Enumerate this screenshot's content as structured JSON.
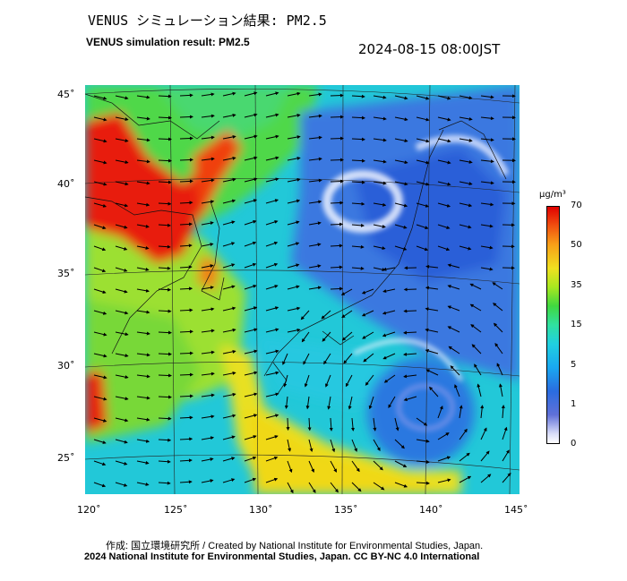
{
  "header": {
    "title_jp": "VENUS シミュレーション結果: PM2.5",
    "title_en": "VENUS simulation result: PM2.5",
    "timestamp": "2024-08-15 08:00JST"
  },
  "map": {
    "variable": "PM2.5",
    "lat_labels": [
      "45˚",
      "40˚",
      "35˚",
      "30˚",
      "25˚"
    ],
    "lon_labels": [
      "120˚",
      "125˚",
      "130˚",
      "135˚",
      "140˚",
      "145˚"
    ],
    "lat_range": [
      23,
      46
    ],
    "lon_range": [
      120,
      145
    ],
    "features": [
      "typhoon-circulation",
      "high-concentration-north-china",
      "clean-air-north-pacific"
    ],
    "colors": {
      "high": "#e00000",
      "medium": "#f0e020",
      "mid_low": "#40d840",
      "low": "#20d0e0",
      "very_low": "#2a6ce0",
      "clean": "#ffffff"
    }
  },
  "colorbar": {
    "unit": "μg/m³",
    "ticks": [
      "70",
      "50",
      "35",
      "15",
      "5",
      "1",
      "0"
    ]
  },
  "footer": {
    "credit": "作成: 国立環境研究所 / Created by National Institute for Environmental Studies, Japan.",
    "copyright": "2024 National Institute for Environmental Studies, Japan. CC BY-NC 4.0 International"
  }
}
